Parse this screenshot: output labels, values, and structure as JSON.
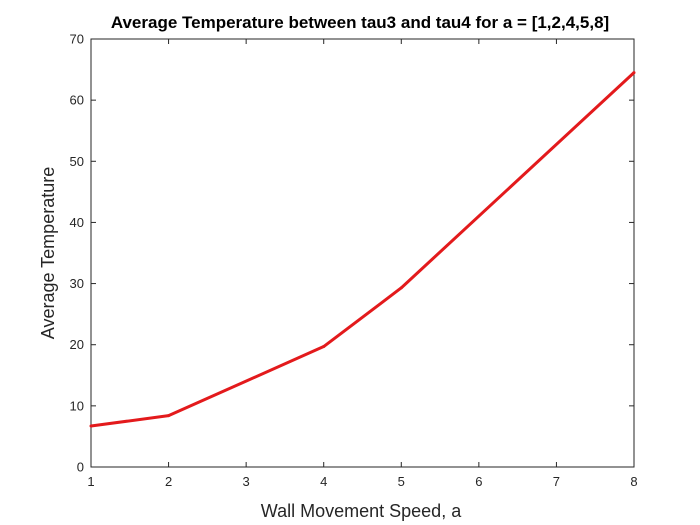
{
  "chart_data": {
    "type": "line",
    "title": "Average Temperature between tau3 and tau4 for a = [1,2,4,5,8]",
    "xlabel": "Wall Movement Speed, a",
    "ylabel": "Average Temperature",
    "xlim": [
      1,
      8
    ],
    "ylim": [
      0,
      70
    ],
    "xticks": [
      1,
      2,
      3,
      4,
      5,
      6,
      7,
      8
    ],
    "yticks": [
      0,
      10,
      20,
      30,
      40,
      50,
      60,
      70
    ],
    "grid": false,
    "legend": "none",
    "series": [
      {
        "color": "#e31a1c",
        "x": [
          1,
          2,
          4,
          5,
          8
        ],
        "y": [
          6.7,
          8.4,
          19.7,
          29.3,
          64.5
        ]
      }
    ]
  }
}
